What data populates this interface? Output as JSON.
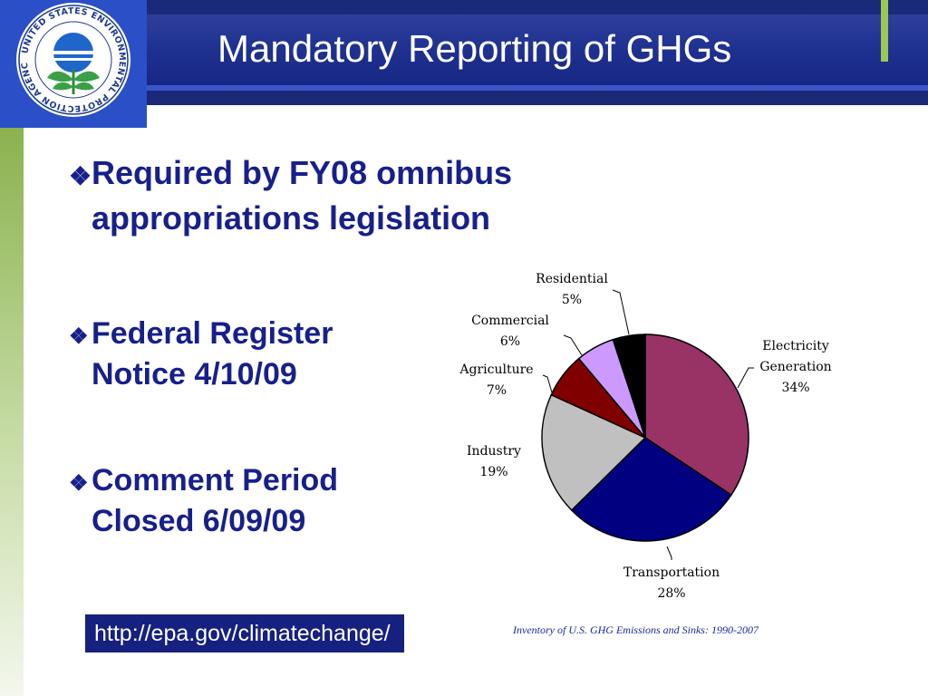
{
  "slide": {
    "title": "Mandatory Reporting of GHGs",
    "bullets": [
      {
        "text": "Required by FY08 omnibus appropriations legislation"
      },
      {
        "text": "Federal Register Notice 4/10/09"
      },
      {
        "text": "Comment Period Closed 6/09/09"
      }
    ],
    "url": "http://epa.gov/climatechange/",
    "source_note": "Inventory of U.S. GHG Emissions and Sinks: 1990-2007",
    "logo": {
      "ring_text": "UNITED STATES ENVIRONMENTAL PROTECTION AGENCY"
    }
  },
  "colors": {
    "header_blue": "#1a2a7a",
    "text_blue": "#17208a",
    "accent_green": "#9ec653"
  },
  "chart_data": {
    "type": "pie",
    "title": "",
    "labels": [
      "Electricity Generation",
      "Transportation",
      "Industry",
      "Agriculture",
      "Commercial",
      "Residential"
    ],
    "values": [
      34,
      28,
      19,
      7,
      6,
      5
    ],
    "value_labels": [
      "34%",
      "28%",
      "19%",
      "7%",
      "6%",
      "5%"
    ],
    "colors": [
      "#993366",
      "#000080",
      "#c0c0c0",
      "#800000",
      "#cc99ff",
      "#000000"
    ],
    "start_angle_deg": 0,
    "direction": "clockwise"
  }
}
